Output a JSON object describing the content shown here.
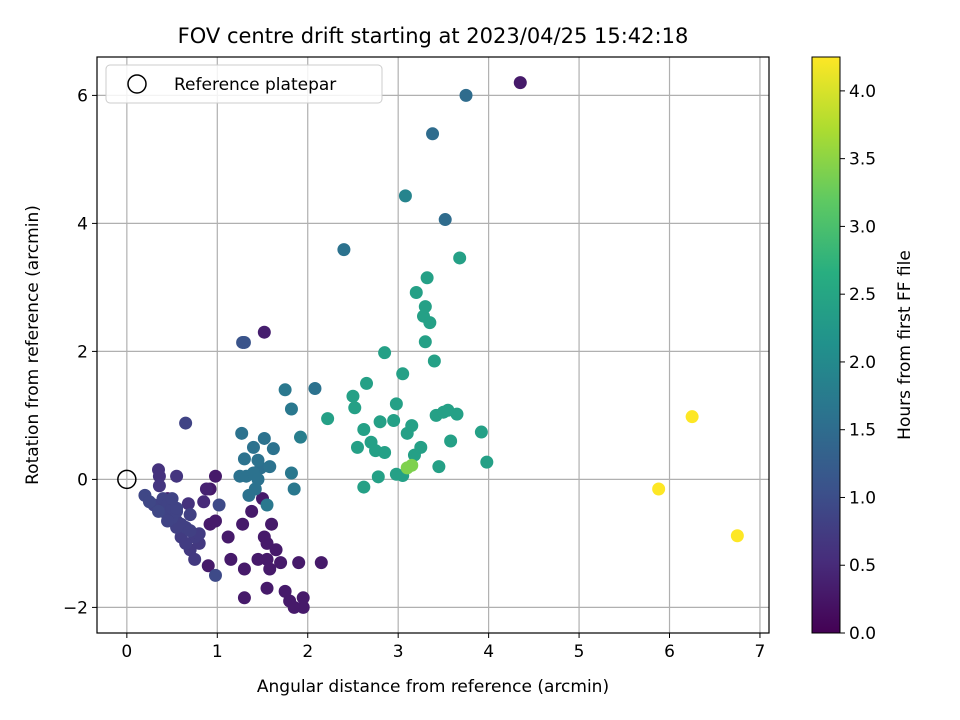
{
  "chart_data": {
    "type": "scatter",
    "title": "FOV centre drift starting at 2023/04/25 15:42:18",
    "xlabel": "Angular distance from reference (arcmin)",
    "ylabel": "Rotation from reference (arcmin)",
    "xlim": [
      -0.33,
      7.1
    ],
    "ylim": [
      -2.4,
      6.6
    ],
    "xticks": [
      0,
      1,
      2,
      3,
      4,
      5,
      6,
      7
    ],
    "xtick_labels": [
      "0",
      "1",
      "2",
      "3",
      "4",
      "5",
      "6",
      "7"
    ],
    "yticks": [
      -2,
      0,
      2,
      4,
      6
    ],
    "ytick_labels": [
      "−2",
      "0",
      "2",
      "4",
      "6"
    ],
    "grid": true,
    "legend": {
      "position": "top-left",
      "entries": [
        {
          "label": "Reference platepar",
          "marker": "open-circle"
        }
      ]
    },
    "reference_point": {
      "x": 0,
      "y": 0
    },
    "colorbar": {
      "label": "Hours from first FF file",
      "colormap": "viridis",
      "range": [
        0,
        4.25
      ],
      "ticks": [
        0.0,
        0.5,
        1.0,
        1.5,
        2.0,
        2.5,
        3.0,
        3.5,
        4.0
      ],
      "tick_labels": [
        "0.0",
        "0.5",
        "1.0",
        "1.5",
        "2.0",
        "2.5",
        "3.0",
        "3.5",
        "4.0"
      ]
    },
    "points": [
      [
        0.2,
        -0.25,
        0.9
      ],
      [
        0.25,
        -0.35,
        0.9
      ],
      [
        0.3,
        -0.4,
        0.85
      ],
      [
        0.35,
        -0.45,
        0.85
      ],
      [
        0.4,
        -0.5,
        0.85
      ],
      [
        0.45,
        -0.55,
        0.85
      ],
      [
        0.5,
        -0.6,
        0.85
      ],
      [
        0.55,
        -0.65,
        0.8
      ],
      [
        0.6,
        -0.7,
        0.8
      ],
      [
        0.65,
        -0.75,
        0.8
      ],
      [
        0.7,
        -0.8,
        0.8
      ],
      [
        0.75,
        -0.9,
        0.75
      ],
      [
        0.8,
        -0.85,
        0.75
      ],
      [
        0.4,
        -0.3,
        0.85
      ],
      [
        0.45,
        -0.4,
        0.85
      ],
      [
        0.5,
        -0.45,
        0.85
      ],
      [
        0.55,
        -0.5,
        0.85
      ],
      [
        0.35,
        -0.5,
        0.9
      ],
      [
        0.45,
        -0.65,
        0.85
      ],
      [
        0.55,
        -0.75,
        0.8
      ],
      [
        0.6,
        -0.9,
        0.75
      ],
      [
        0.65,
        -1.0,
        0.75
      ],
      [
        0.7,
        -1.1,
        0.7
      ],
      [
        0.75,
        -1.25,
        0.7
      ],
      [
        0.8,
        -1.0,
        0.7
      ],
      [
        0.55,
        -0.45,
        0.85
      ],
      [
        0.7,
        -0.55,
        0.8
      ],
      [
        0.5,
        -0.3,
        0.85
      ],
      [
        0.55,
        0.05,
        0.65
      ],
      [
        0.35,
        0.15,
        0.6
      ],
      [
        0.36,
        0.05,
        0.6
      ],
      [
        0.36,
        -0.1,
        0.65
      ],
      [
        0.68,
        -0.38,
        0.6
      ],
      [
        0.65,
        0.88,
        0.85
      ],
      [
        0.45,
        -0.3,
        0.3
      ],
      [
        0.85,
        -0.35,
        0.5
      ],
      [
        0.88,
        -0.15,
        0.4
      ],
      [
        0.92,
        -0.15,
        0.3
      ],
      [
        0.98,
        0.05,
        0.3
      ],
      [
        0.92,
        -0.7,
        0.3
      ],
      [
        0.98,
        -0.65,
        0.3
      ],
      [
        1.12,
        -0.9,
        0.3
      ],
      [
        1.28,
        -0.7,
        0.3
      ],
      [
        1.38,
        -0.5,
        0.3
      ],
      [
        1.45,
        -1.25,
        0.3
      ],
      [
        1.52,
        -0.9,
        0.3
      ],
      [
        1.55,
        -1.0,
        0.3
      ],
      [
        1.6,
        -0.7,
        0.3
      ],
      [
        1.65,
        -1.1,
        0.3
      ],
      [
        1.55,
        -1.25,
        0.3
      ],
      [
        1.58,
        -1.4,
        0.3
      ],
      [
        1.7,
        -1.3,
        0.3
      ],
      [
        1.3,
        -1.4,
        0.3
      ],
      [
        1.3,
        -1.85,
        0.3
      ],
      [
        1.55,
        -1.7,
        0.3
      ],
      [
        1.75,
        -1.75,
        0.3
      ],
      [
        1.8,
        -1.9,
        0.3
      ],
      [
        1.85,
        -2.0,
        0.3
      ],
      [
        1.95,
        -2.0,
        0.3
      ],
      [
        1.95,
        -1.85,
        0.3
      ],
      [
        1.9,
        -1.3,
        0.3
      ],
      [
        2.15,
        -1.3,
        0.3
      ],
      [
        1.15,
        -1.25,
        0.3
      ],
      [
        0.9,
        -1.35,
        0.3
      ],
      [
        1.5,
        -0.3,
        0.3
      ],
      [
        1.52,
        2.3,
        0.35
      ],
      [
        4.35,
        6.2,
        0.3
      ],
      [
        0.98,
        -1.5,
        0.95
      ],
      [
        1.02,
        -0.4,
        0.95
      ],
      [
        1.28,
        2.14,
        1.1
      ],
      [
        1.3,
        2.14,
        1.1
      ],
      [
        1.27,
        0.72,
        1.6
      ],
      [
        1.32,
        0.05,
        1.6
      ],
      [
        1.4,
        0.1,
        1.6
      ],
      [
        1.35,
        -0.25,
        1.6
      ],
      [
        1.42,
        -0.15,
        1.6
      ],
      [
        1.45,
        0.0,
        1.6
      ],
      [
        1.52,
        0.64,
        1.6
      ],
      [
        1.58,
        0.2,
        1.6
      ],
      [
        1.62,
        0.48,
        1.6
      ],
      [
        1.3,
        0.32,
        1.6
      ],
      [
        1.4,
        0.5,
        1.6
      ],
      [
        1.48,
        0.18,
        1.55
      ],
      [
        1.25,
        0.05,
        1.6
      ],
      [
        1.55,
        -0.4,
        1.7
      ],
      [
        1.82,
        0.1,
        1.7
      ],
      [
        1.85,
        -0.15,
        1.7
      ],
      [
        1.75,
        1.4,
        1.7
      ],
      [
        1.82,
        1.1,
        1.7
      ],
      [
        1.92,
        0.66,
        1.8
      ],
      [
        2.08,
        1.42,
        1.6
      ],
      [
        2.4,
        3.59,
        1.6
      ],
      [
        3.08,
        4.43,
        1.9
      ],
      [
        3.38,
        5.4,
        1.5
      ],
      [
        3.75,
        6.0,
        1.5
      ],
      [
        3.52,
        4.06,
        1.5
      ],
      [
        1.45,
        0.3,
        1.6
      ],
      [
        2.22,
        0.95,
        2.4
      ],
      [
        2.5,
        1.3,
        2.4
      ],
      [
        2.52,
        1.12,
        2.4
      ],
      [
        2.55,
        0.5,
        2.4
      ],
      [
        2.62,
        -0.12,
        2.4
      ],
      [
        2.62,
        0.78,
        2.4
      ],
      [
        2.65,
        1.5,
        2.4
      ],
      [
        2.7,
        0.58,
        2.4
      ],
      [
        2.75,
        0.45,
        2.4
      ],
      [
        2.78,
        0.04,
        2.4
      ],
      [
        2.8,
        0.9,
        2.4
      ],
      [
        2.85,
        0.42,
        2.4
      ],
      [
        2.85,
        1.98,
        2.4
      ],
      [
        2.95,
        0.92,
        2.4
      ],
      [
        2.98,
        0.08,
        2.4
      ],
      [
        2.98,
        1.18,
        2.4
      ],
      [
        3.05,
        1.65,
        2.4
      ],
      [
        3.05,
        0.06,
        2.4
      ],
      [
        3.1,
        0.72,
        2.4
      ],
      [
        3.15,
        0.84,
        2.4
      ],
      [
        3.18,
        0.38,
        2.4
      ],
      [
        3.2,
        2.92,
        2.4
      ],
      [
        3.25,
        0.5,
        2.4
      ],
      [
        3.28,
        2.55,
        2.4
      ],
      [
        3.3,
        2.7,
        2.4
      ],
      [
        3.3,
        2.15,
        2.4
      ],
      [
        3.32,
        3.15,
        2.4
      ],
      [
        3.35,
        2.45,
        2.4
      ],
      [
        3.4,
        1.85,
        2.4
      ],
      [
        3.42,
        1.0,
        2.4
      ],
      [
        3.45,
        0.2,
        2.4
      ],
      [
        3.5,
        1.05,
        2.4
      ],
      [
        3.55,
        1.08,
        2.4
      ],
      [
        3.58,
        0.6,
        2.4
      ],
      [
        3.65,
        1.02,
        2.4
      ],
      [
        3.68,
        3.46,
        2.4
      ],
      [
        3.92,
        0.74,
        2.4
      ],
      [
        3.98,
        0.27,
        2.4
      ],
      [
        3.1,
        0.18,
        3.4
      ],
      [
        3.15,
        0.22,
        3.4
      ],
      [
        5.88,
        -0.15,
        4.25
      ],
      [
        6.25,
        0.98,
        4.25
      ],
      [
        6.75,
        -0.88,
        4.25
      ]
    ]
  }
}
